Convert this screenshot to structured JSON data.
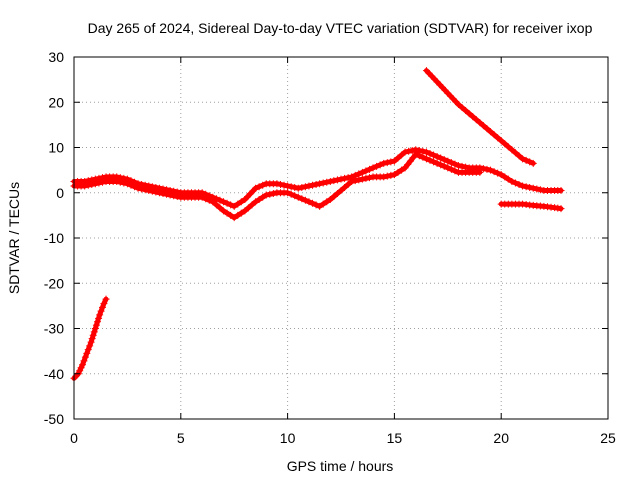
{
  "chart_data": {
    "type": "scatter",
    "title": "Day 265 of 2024, Sidereal Day-to-day VTEC variation (SDTVAR) for receiver ixop",
    "xlabel": "GPS time / hours",
    "ylabel": "SDTVAR / TECUs",
    "xlim": [
      0,
      25
    ],
    "ylim": [
      -50,
      30
    ],
    "xticks": [
      0,
      5,
      10,
      15,
      20,
      25
    ],
    "yticks": [
      -50,
      -40,
      -30,
      -20,
      -10,
      0,
      10,
      20,
      30
    ],
    "xtick_labels": [
      "0",
      "5",
      "10",
      "15",
      "20",
      "25"
    ],
    "ytick_labels": [
      "-50",
      "-40",
      "-30",
      "-20",
      "-10",
      "0",
      "10",
      "20",
      "30"
    ],
    "grid": true,
    "marker_color": "#ff0000",
    "series": [
      {
        "name": "early-drop",
        "x": [
          0.0,
          0.2,
          0.4,
          0.6,
          0.8,
          1.0,
          1.2,
          1.4,
          1.5
        ],
        "y": [
          -41,
          -40,
          -38,
          -35.5,
          -33,
          -30,
          -27,
          -24.5,
          -23.5
        ]
      },
      {
        "name": "main-band-upper",
        "x": [
          0.0,
          0.5,
          1.0,
          1.5,
          2.0,
          2.5,
          3.0,
          3.5,
          4.0,
          4.5,
          5.0,
          5.5,
          6.0,
          6.5,
          7.0,
          7.5,
          8.0,
          8.5,
          9.0,
          9.5,
          10.0,
          10.5,
          11.0,
          11.5,
          12.0,
          12.5,
          13.0,
          13.5,
          14.0,
          14.5,
          15.0,
          15.5,
          16.0,
          16.5,
          17.0,
          17.5,
          18.0,
          18.5,
          19.0,
          19.5,
          20.0,
          20.5,
          21.0,
          21.5,
          22.0,
          22.5,
          22.8
        ],
        "y": [
          2.5,
          2.5,
          3,
          3.5,
          3.5,
          3,
          2,
          1.5,
          1,
          0.5,
          0,
          0,
          0,
          -1,
          -2,
          -3,
          -1.5,
          1,
          2,
          2,
          1.5,
          1,
          1.5,
          2,
          2.5,
          3,
          3.5,
          4.5,
          5.5,
          6.5,
          7,
          9,
          9.5,
          9,
          8,
          7,
          6,
          5.5,
          5.5,
          5,
          4,
          2.5,
          1.5,
          1,
          0.5,
          0.5,
          0.5
        ]
      },
      {
        "name": "main-band-lower",
        "x": [
          0.0,
          0.5,
          1.0,
          1.5,
          2.0,
          2.5,
          3.0,
          3.5,
          4.0,
          4.5,
          5.0,
          5.5,
          6.0,
          6.5,
          7.0,
          7.5,
          8.0,
          8.5,
          9.0,
          9.5,
          10.0,
          10.5,
          11.0,
          11.5,
          12.0,
          12.5,
          13.0,
          13.5,
          14.0,
          14.5,
          15.0,
          15.5,
          16.0,
          16.5,
          17.0,
          17.5,
          18.0,
          18.5,
          19.0
        ],
        "y": [
          1.5,
          1.5,
          2,
          2.5,
          2.5,
          2,
          1,
          0.5,
          0,
          -0.5,
          -1,
          -1,
          -1,
          -2,
          -4,
          -5.5,
          -4,
          -2,
          -0.5,
          0,
          0,
          -1,
          -2,
          -3,
          -1.5,
          0.5,
          2.5,
          3,
          3.5,
          3.5,
          4,
          5.5,
          8.5,
          7.5,
          6.5,
          5.5,
          4.5,
          4.5,
          4.5
        ]
      },
      {
        "name": "high-descending",
        "x": [
          16.5,
          17.0,
          17.5,
          18.0,
          18.5,
          19.0,
          19.5,
          20.0,
          20.5,
          21.0,
          21.5
        ],
        "y": [
          27,
          24.5,
          22,
          19.5,
          17.5,
          15.5,
          13.5,
          11.5,
          9.5,
          7.5,
          6.5
        ]
      },
      {
        "name": "late-negative",
        "x": [
          20.0,
          20.5,
          21.0,
          21.5,
          22.0,
          22.5,
          22.8
        ],
        "y": [
          -2.5,
          -2.5,
          -2.5,
          -2.8,
          -3,
          -3.3,
          -3.5
        ]
      }
    ]
  }
}
